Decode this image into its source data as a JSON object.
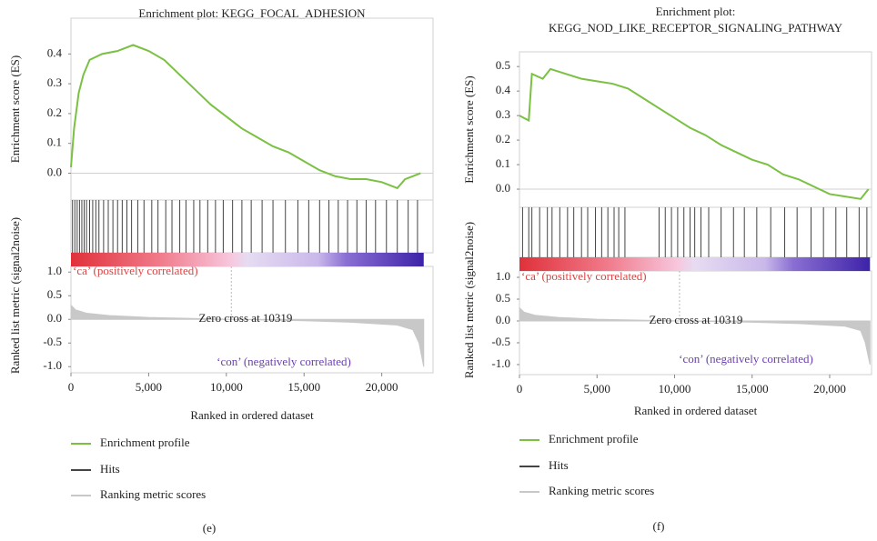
{
  "chart_data": [
    {
      "type": "line",
      "title": [
        "Enrichment plot: KEGG_FOCAL_ADHESION"
      ],
      "panel_label": "(e)",
      "xlabel": "Ranked in ordered dataset",
      "ylabel": "Enrichment score (ES)",
      "y2label": "Ranked list metric (signal2noise)",
      "xlim": [
        0,
        23300
      ],
      "xticks": [
        0,
        {
          "value": 5000,
          "label": "5,000"
        },
        {
          "value": 10000,
          "label": "10,000"
        },
        {
          "value": 15000,
          "label": "15,000"
        },
        {
          "value": 20000,
          "label": "20,000"
        }
      ],
      "ylim": [
        -0.09,
        0.52
      ],
      "yticks": [
        {
          "value": 0,
          "label": "0.0"
        },
        0.1,
        0.2,
        0.3,
        0.4
      ],
      "y2lim": [
        -1.13,
        1.12
      ],
      "y2ticks": [
        {
          "value": 1,
          "label": "1.0"
        },
        0.5,
        {
          "value": 0,
          "label": "0.0"
        },
        -0.5,
        {
          "value": -1,
          "label": "-1.0"
        }
      ],
      "annotations": {
        "positive": "‘ca’ (positively correlated)",
        "zero_cross": "Zero cross at 10319",
        "negative": "‘con’ (negatively correlated)"
      },
      "zero_cross": 10319,
      "series": [
        {
          "name": "Enrichment profile",
          "color": "#7ac143",
          "x": [
            0,
            200,
            500,
            800,
            1200,
            2000,
            3000,
            4000,
            5000,
            6000,
            7000,
            8000,
            9000,
            10000,
            11000,
            12000,
            13000,
            14000,
            15000,
            16000,
            17000,
            18000,
            19000,
            20000,
            21000,
            21500,
            22000,
            22500
          ],
          "values": [
            0.02,
            0.15,
            0.27,
            0.33,
            0.38,
            0.4,
            0.41,
            0.43,
            0.41,
            0.38,
            0.33,
            0.28,
            0.23,
            0.19,
            0.15,
            0.12,
            0.09,
            0.07,
            0.04,
            0.01,
            -0.01,
            -0.02,
            -0.02,
            -0.03,
            -0.05,
            -0.02,
            -0.01,
            0.0
          ]
        },
        {
          "name": "Hits",
          "color": "#444444",
          "x": [
            100,
            250,
            400,
            550,
            700,
            850,
            1000,
            1200,
            1400,
            1600,
            1800,
            2100,
            2400,
            2700,
            3000,
            3300,
            3600,
            3900,
            4300,
            4700,
            5200,
            5600,
            6100,
            6500,
            7000,
            7400,
            7900,
            8300,
            8800,
            9300,
            9800,
            10400,
            11000,
            11600,
            12300,
            13000,
            13800,
            14600,
            15300,
            16000,
            16600,
            17200,
            17800,
            18400,
            19000,
            19600,
            20300,
            21000,
            21700,
            22300
          ]
        },
        {
          "name": "Ranking metric scores",
          "color": "#c8c8c8",
          "axis": "y2",
          "x": [
            0,
            300,
            1000,
            2500,
            5000,
            10319,
            15000,
            18000,
            21000,
            22000,
            22400,
            22700
          ],
          "values": [
            0.3,
            0.2,
            0.13,
            0.08,
            0.04,
            0,
            -0.03,
            -0.06,
            -0.12,
            -0.22,
            -0.5,
            -1.0
          ]
        }
      ]
    },
    {
      "type": "line",
      "title": [
        "Enrichment plot:",
        "KEGG_NOD_LIKE_RECEPTOR_SIGNALING_PATHWAY"
      ],
      "panel_label": "(f)",
      "xlabel": "Ranked in ordered dataset",
      "ylabel": "Enrichment score (ES)",
      "y2label": "Ranked list metric (signal2noise)",
      "xlim": [
        0,
        22700
      ],
      "xticks": [
        0,
        {
          "value": 5000,
          "label": "5,000"
        },
        {
          "value": 10000,
          "label": "10,000"
        },
        {
          "value": 15000,
          "label": "15,000"
        },
        {
          "value": 20000,
          "label": "20,000"
        }
      ],
      "ylim": [
        -0.074,
        0.56
      ],
      "yticks": [
        {
          "value": 0,
          "label": "0.0"
        },
        0.1,
        0.2,
        0.3,
        0.4,
        0.5
      ],
      "y2lim": [
        -1.23,
        1.146
      ],
      "y2ticks": [
        {
          "value": 1,
          "label": "1.0"
        },
        0.5,
        {
          "value": 0,
          "label": "0.0"
        },
        -0.5,
        {
          "value": -1,
          "label": "-1.0"
        }
      ],
      "annotations": {
        "positive": "‘ca’ (positively correlated)",
        "zero_cross": "Zero cross at 10319",
        "negative": "‘con’ (negatively correlated)"
      },
      "zero_cross": 10319,
      "series": [
        {
          "name": "Enrichment profile",
          "color": "#7ac143",
          "x": [
            0,
            300,
            600,
            800,
            1500,
            2000,
            3000,
            4000,
            5000,
            6000,
            7000,
            8000,
            9000,
            10000,
            11000,
            12000,
            13000,
            14000,
            15000,
            16000,
            17000,
            18000,
            19000,
            20000,
            21000,
            22000,
            22500
          ],
          "values": [
            0.3,
            0.29,
            0.28,
            0.47,
            0.45,
            0.49,
            0.47,
            0.45,
            0.44,
            0.43,
            0.41,
            0.37,
            0.33,
            0.29,
            0.25,
            0.22,
            0.18,
            0.15,
            0.12,
            0.1,
            0.06,
            0.04,
            0.01,
            -0.02,
            -0.03,
            -0.04,
            0.0
          ]
        },
        {
          "name": "Hits",
          "color": "#444444",
          "x": [
            200,
            600,
            800,
            1300,
            1800,
            2100,
            2600,
            3100,
            3500,
            4000,
            4400,
            4900,
            5300,
            5700,
            6100,
            6400,
            6800,
            9000,
            9400,
            9800,
            10200,
            10600,
            11000,
            11300,
            11700,
            12200,
            13000,
            13800,
            14500,
            15300,
            16200,
            17100,
            17900,
            18800,
            19600,
            20400,
            21100,
            21900,
            22400
          ]
        },
        {
          "name": "Ranking metric scores",
          "color": "#c8c8c8",
          "axis": "y2",
          "x": [
            0,
            300,
            1000,
            2500,
            5000,
            10319,
            15000,
            18000,
            21000,
            22000,
            22300,
            22600
          ],
          "values": [
            0.3,
            0.2,
            0.13,
            0.08,
            0.04,
            0,
            -0.03,
            -0.06,
            -0.12,
            -0.22,
            -0.5,
            -1.0
          ]
        }
      ]
    }
  ]
}
